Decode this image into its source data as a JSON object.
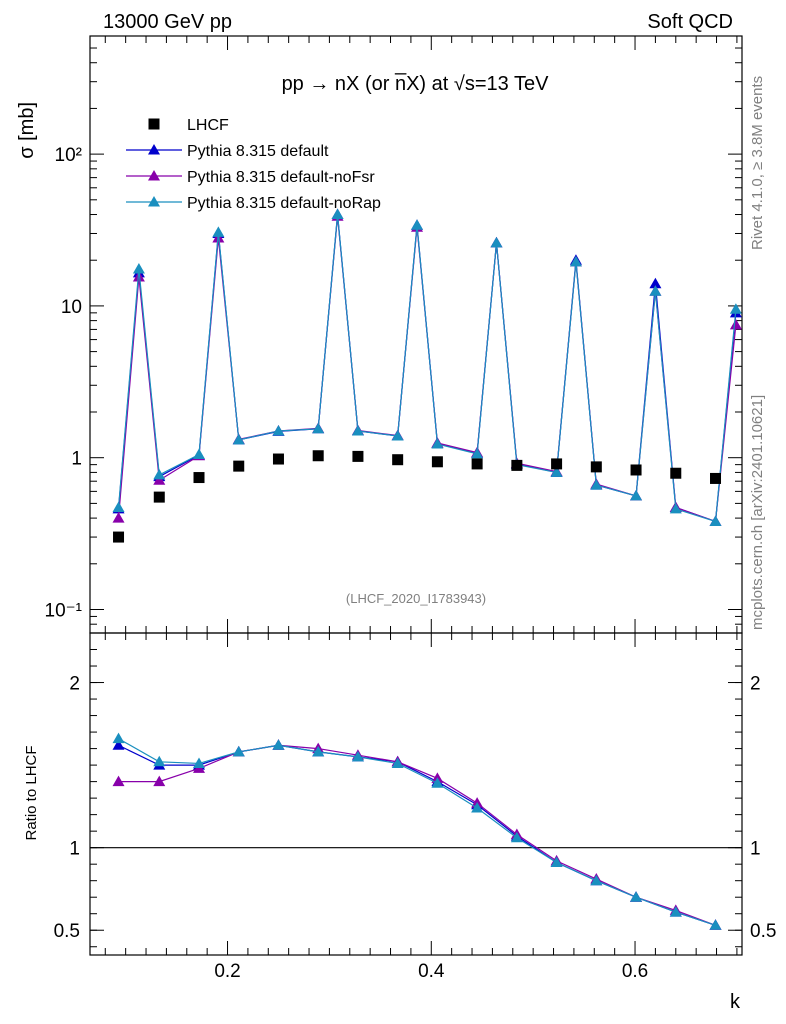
{
  "header": {
    "left": "13000 GeV pp",
    "right": "Soft QCD"
  },
  "side_labels": {
    "rivet": "Rivet 4.1.0, ≥ 3.8M events",
    "mcplots": "mcplots.cern.ch [arXiv:2401.10621]"
  },
  "chart_data": [
    {
      "type": "scatter",
      "panel": "main",
      "title": "pp → nX (or n̅X) at √s=13 TeV",
      "ylabel": "σ [mb]",
      "xlabel": "",
      "yscale": "log",
      "xlim": [
        0.065,
        0.705
      ],
      "ylim": [
        0.07,
        600
      ],
      "y_ticks": [
        0.1,
        1,
        10,
        100
      ],
      "y_tick_labels": [
        "10⁻¹",
        "1",
        "10",
        "10²"
      ],
      "x_ticks": [
        0.2,
        0.4,
        0.6
      ],
      "watermark": "(LHCF_2020_I1783943)",
      "legend_position": "top-left",
      "series": [
        {
          "name": "LHCF",
          "color": "#000000",
          "marker": "square",
          "x": [
            0.093,
            0.133,
            0.172,
            0.211,
            0.25,
            0.289,
            0.328,
            0.367,
            0.406,
            0.445,
            0.484,
            0.523,
            0.562,
            0.601,
            0.64,
            0.679
          ],
          "y": [
            0.3,
            0.55,
            0.74,
            0.88,
            0.98,
            1.03,
            1.02,
            0.97,
            0.94,
            0.91,
            0.89,
            0.91,
            0.87,
            0.83,
            0.79,
            0.73
          ]
        },
        {
          "name": "Pythia 8.315 default",
          "color": "#0000cc",
          "marker": "triangle",
          "x": [
            0.093,
            0.113,
            0.133,
            0.172,
            0.191,
            0.211,
            0.25,
            0.289,
            0.308,
            0.328,
            0.367,
            0.386,
            0.406,
            0.445,
            0.464,
            0.484,
            0.523,
            0.542,
            0.562,
            0.601,
            0.62,
            0.64,
            0.679,
            0.699
          ],
          "y": [
            0.46,
            16.5,
            0.75,
            1.04,
            30,
            1.31,
            1.49,
            1.55,
            40,
            1.5,
            1.39,
            34,
            1.24,
            1.07,
            26,
            0.91,
            0.8,
            20,
            0.66,
            0.56,
            14,
            0.47,
            0.38,
            9.0
          ]
        },
        {
          "name": "Pythia 8.315 default-noFsr",
          "color": "#8800aa",
          "marker": "triangle",
          "x": [
            0.093,
            0.113,
            0.133,
            0.172,
            0.191,
            0.211,
            0.25,
            0.289,
            0.308,
            0.328,
            0.367,
            0.386,
            0.406,
            0.445,
            0.464,
            0.484,
            0.523,
            0.542,
            0.562,
            0.601,
            0.62,
            0.64,
            0.679,
            0.699
          ],
          "y": [
            0.4,
            15.5,
            0.71,
            1.03,
            28,
            1.32,
            1.5,
            1.56,
            39,
            1.51,
            1.4,
            33,
            1.25,
            1.08,
            26,
            0.92,
            0.81,
            19.5,
            0.67,
            0.56,
            12.5,
            0.47,
            0.38,
            7.5
          ]
        },
        {
          "name": "Pythia 8.315 default-noRap",
          "color": "#1a8fbf",
          "marker": "triangle",
          "x": [
            0.093,
            0.113,
            0.133,
            0.172,
            0.191,
            0.211,
            0.25,
            0.289,
            0.308,
            0.328,
            0.367,
            0.386,
            0.406,
            0.445,
            0.464,
            0.484,
            0.523,
            0.542,
            0.562,
            0.601,
            0.62,
            0.64,
            0.679,
            0.699
          ],
          "y": [
            0.47,
            17.5,
            0.77,
            1.05,
            30.5,
            1.31,
            1.5,
            1.55,
            40,
            1.5,
            1.39,
            34,
            1.23,
            1.06,
            26,
            0.9,
            0.8,
            19.5,
            0.66,
            0.56,
            12.5,
            0.46,
            0.38,
            9.5
          ]
        }
      ]
    },
    {
      "type": "line",
      "panel": "ratio",
      "ylabel": "Ratio to LHCF",
      "xlabel": "k",
      "ylim": [
        0.35,
        2.3
      ],
      "y_ticks": [
        0.5,
        1,
        2
      ],
      "y_tick_labels": [
        "0.5",
        "1",
        "2"
      ],
      "x_ticks": [
        0.2,
        0.4,
        0.6
      ],
      "x_tick_labels": [
        "0.2",
        "0.4",
        "0.6"
      ],
      "reference_line": 1,
      "series": [
        {
          "name": "Pythia 8.315 default",
          "color": "#0000cc",
          "x": [
            0.093,
            0.133,
            0.172,
            0.211,
            0.25,
            0.289,
            0.328,
            0.367,
            0.406,
            0.445,
            0.484,
            0.523,
            0.562,
            0.601,
            0.64,
            0.679
          ],
          "y": [
            1.62,
            1.5,
            1.5,
            1.58,
            1.62,
            1.58,
            1.55,
            1.52,
            1.4,
            1.26,
            1.07,
            0.91,
            0.8,
            0.7,
            0.61,
            0.53
          ]
        },
        {
          "name": "Pythia 8.315 default-noFsr",
          "color": "#8800aa",
          "x": [
            0.093,
            0.133,
            0.172,
            0.211,
            0.25,
            0.289,
            0.328,
            0.367,
            0.406,
            0.445,
            0.484,
            0.523,
            0.562,
            0.601,
            0.64,
            0.679
          ],
          "y": [
            1.4,
            1.4,
            1.48,
            1.58,
            1.62,
            1.6,
            1.56,
            1.52,
            1.42,
            1.27,
            1.08,
            0.92,
            0.81,
            0.7,
            0.62,
            0.53
          ]
        },
        {
          "name": "Pythia 8.315 default-noRap",
          "color": "#1a8fbf",
          "x": [
            0.093,
            0.133,
            0.172,
            0.211,
            0.25,
            0.289,
            0.328,
            0.367,
            0.406,
            0.445,
            0.484,
            0.523,
            0.562,
            0.601,
            0.64,
            0.679
          ],
          "y": [
            1.66,
            1.52,
            1.51,
            1.58,
            1.62,
            1.58,
            1.55,
            1.51,
            1.39,
            1.24,
            1.06,
            0.91,
            0.8,
            0.7,
            0.61,
            0.53
          ]
        }
      ]
    }
  ]
}
